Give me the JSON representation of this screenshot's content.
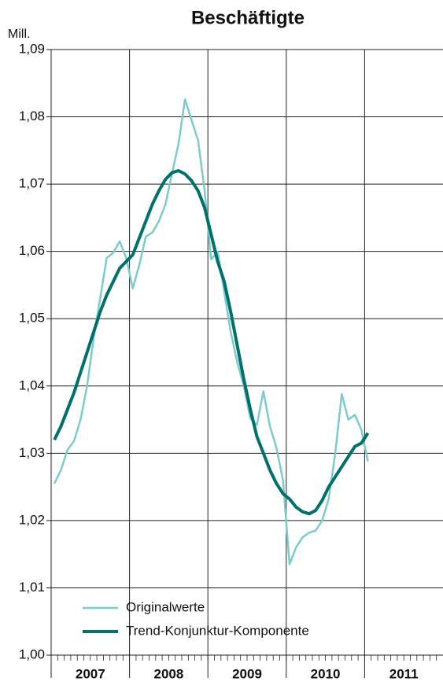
{
  "chart_data": {
    "type": "line",
    "title": "Beschäftigte",
    "y_unit": "Mill.",
    "categories": [
      null,
      null,
      null,
      null,
      null,
      null,
      null,
      null,
      null,
      null,
      null,
      null,
      null,
      null,
      null,
      null,
      null,
      null,
      null,
      null,
      null,
      null,
      null,
      null,
      null,
      null,
      null,
      null,
      null,
      null,
      null,
      null,
      null,
      null,
      null,
      null,
      null,
      null,
      null,
      null,
      null,
      null,
      null,
      null,
      null,
      null,
      null,
      null,
      null,
      null,
      null,
      null,
      null,
      null,
      null,
      null,
      null,
      null,
      null,
      null
    ],
    "category_groups": [
      "2007",
      "2008",
      "2009",
      "2010",
      "2011"
    ],
    "series": [
      {
        "name": "Originalwerte",
        "color": "#7ecbcb",
        "width": 2.5,
        "values": [
          1.0255,
          1.0275,
          1.0305,
          1.0318,
          1.035,
          1.04,
          1.047,
          1.053,
          1.059,
          1.0598,
          1.0615,
          1.059,
          1.0545,
          1.058,
          1.0622,
          1.0628,
          1.0645,
          1.067,
          1.0715,
          1.076,
          1.0826,
          1.0795,
          1.0765,
          1.069,
          1.0588,
          1.06,
          1.054,
          1.048,
          1.0435,
          1.04,
          1.0352,
          1.0342,
          1.0392,
          1.034,
          1.0308,
          1.026,
          1.0135,
          1.016,
          1.0175,
          1.0182,
          1.0185,
          1.02,
          1.0232,
          1.03,
          1.0388,
          1.035,
          1.0357,
          1.0335,
          1.0288,
          null,
          null,
          null,
          null,
          null,
          null,
          null,
          null,
          null,
          null,
          null
        ]
      },
      {
        "name": "Trend-Konjunktur-Komponente",
        "color": "#00706b",
        "width": 4,
        "values": [
          1.032,
          1.034,
          1.0365,
          1.039,
          1.042,
          1.045,
          1.048,
          1.051,
          1.0535,
          1.0555,
          1.0575,
          1.0585,
          1.0595,
          1.062,
          1.0645,
          1.067,
          1.069,
          1.0707,
          1.0717,
          1.072,
          1.0715,
          1.0705,
          1.069,
          1.0665,
          1.0625,
          1.0585,
          1.0555,
          1.051,
          1.046,
          1.041,
          1.0365,
          1.0325,
          1.03,
          1.0275,
          1.0255,
          1.024,
          1.0232,
          1.022,
          1.0213,
          1.021,
          1.0215,
          1.023,
          1.025,
          1.0265,
          1.028,
          1.0295,
          1.031,
          1.0315,
          1.033,
          null,
          null,
          null,
          null,
          null,
          null,
          null,
          null,
          null,
          null,
          null
        ]
      }
    ],
    "ylim": [
      1.0,
      1.09
    ],
    "yticks": [
      {
        "value": 1.0,
        "label": "1,00"
      },
      {
        "value": 1.01,
        "label": "1,01"
      },
      {
        "value": 1.02,
        "label": "1,02"
      },
      {
        "value": 1.03,
        "label": "1,03"
      },
      {
        "value": 1.04,
        "label": "1,04"
      },
      {
        "value": 1.05,
        "label": "1,05"
      },
      {
        "value": 1.06,
        "label": "1,06"
      },
      {
        "value": 1.07,
        "label": "1,07"
      },
      {
        "value": 1.08,
        "label": "1,08"
      },
      {
        "value": 1.09,
        "label": "1,09"
      }
    ],
    "grid": true
  }
}
